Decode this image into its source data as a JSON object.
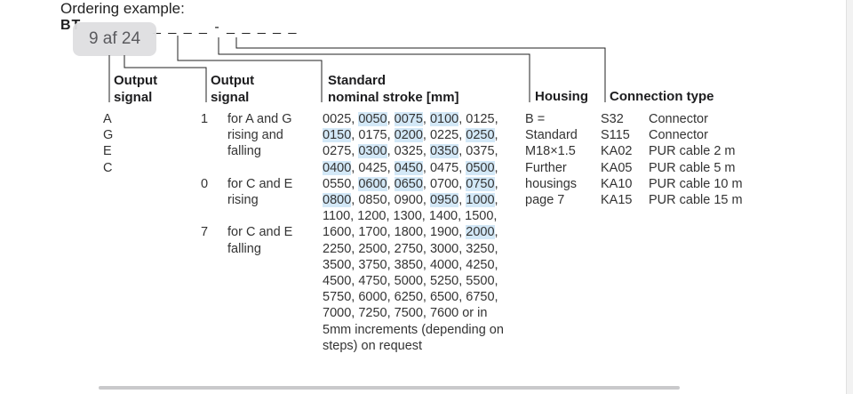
{
  "header": {
    "ordering_label": "Ordering example:",
    "code_prefix": "BT",
    "code_dashes": "_ _ _ _ - _ _ _ _ _",
    "pager": "9 af 24"
  },
  "columns": {
    "output_signal_1": {
      "title1": "Output",
      "title2": "signal",
      "values": [
        "A",
        "G",
        "E",
        "C"
      ]
    },
    "output_signal_2": {
      "title1": "Output",
      "title2": "signal",
      "codes": [
        "1",
        "0",
        "7"
      ],
      "desc": [
        [
          "for A and G",
          "rising and",
          "falling"
        ],
        [
          "for C and E",
          "rising"
        ],
        [
          "for C and E",
          "falling"
        ]
      ]
    },
    "stroke": {
      "title1": "Standard",
      "title2": "nominal stroke [mm]",
      "lines": [
        [
          [
            "0025",
            0
          ],
          [
            ", ",
            0
          ],
          [
            "0050",
            1
          ],
          [
            ", ",
            0
          ],
          [
            "0075",
            1
          ],
          [
            ", ",
            0
          ],
          [
            "0100",
            1
          ],
          [
            ", 0125,",
            0
          ]
        ],
        [
          [
            "0150",
            1
          ],
          [
            ", 0175, ",
            0
          ],
          [
            "0200",
            1
          ],
          [
            ", 0225, ",
            0
          ],
          [
            "0250",
            1
          ],
          [
            ",",
            0
          ]
        ],
        [
          [
            "0275, ",
            0
          ],
          [
            "0300",
            1
          ],
          [
            ", 0325, ",
            0
          ],
          [
            "0350",
            1
          ],
          [
            ", 0375,",
            0
          ]
        ],
        [
          [
            "0400",
            1
          ],
          [
            ", 0425, ",
            0
          ],
          [
            "0450",
            1
          ],
          [
            ", 0475, ",
            0
          ],
          [
            "0500",
            1
          ],
          [
            ",",
            0
          ]
        ],
        [
          [
            "0550, ",
            0
          ],
          [
            "0600",
            1
          ],
          [
            ", ",
            0
          ],
          [
            "0650",
            1
          ],
          [
            ", 0700, ",
            0
          ],
          [
            "0750",
            1
          ],
          [
            ",",
            0
          ]
        ],
        [
          [
            "0800",
            1
          ],
          [
            ", 0850, 0900, ",
            0
          ],
          [
            "0950",
            1
          ],
          [
            ", ",
            0
          ],
          [
            "1000",
            1
          ],
          [
            ",",
            0
          ]
        ],
        [
          [
            "1100, 1200, 1300, 1400, 1500,",
            0
          ]
        ],
        [
          [
            "1600, 1700, 1800, 1900, ",
            0
          ],
          [
            "2000",
            1
          ],
          [
            ",",
            0
          ]
        ],
        [
          [
            "2250, 2500, 2750, 3000, 3250,",
            0
          ]
        ],
        [
          [
            "3500, 3750, 3850, 4000, 4250,",
            0
          ]
        ],
        [
          [
            "4500, 4750, 5000, 5250, 5500,",
            0
          ]
        ],
        [
          [
            "5750, 6000, 6250, 6500, 6750,",
            0
          ]
        ],
        [
          [
            "7000, 7250, 7500, 7600 or in",
            0
          ]
        ],
        [
          [
            "5mm increments (depending on",
            0
          ]
        ],
        [
          [
            "steps) on request",
            0
          ]
        ]
      ]
    },
    "housing": {
      "title": "Housing",
      "lines": [
        "B =",
        "Standard",
        "M18×1.5",
        "Further",
        "housings",
        "page 7"
      ]
    },
    "connection": {
      "title": "Connection type",
      "rows": [
        {
          "code": "S32",
          "desc": "Connector"
        },
        {
          "code": "S115",
          "desc": "Connector"
        },
        {
          "code": "KA02",
          "desc": "PUR cable 2 m"
        },
        {
          "code": "KA05",
          "desc": "PUR cable 5 m"
        },
        {
          "code": "KA10",
          "desc": "PUR cable 10 m"
        },
        {
          "code": "KA15",
          "desc": "PUR cable 15 m"
        }
      ]
    }
  },
  "colors": {
    "highlight": "#d3e8f7",
    "text": "#333333",
    "pager_bg": "#dedee0"
  }
}
